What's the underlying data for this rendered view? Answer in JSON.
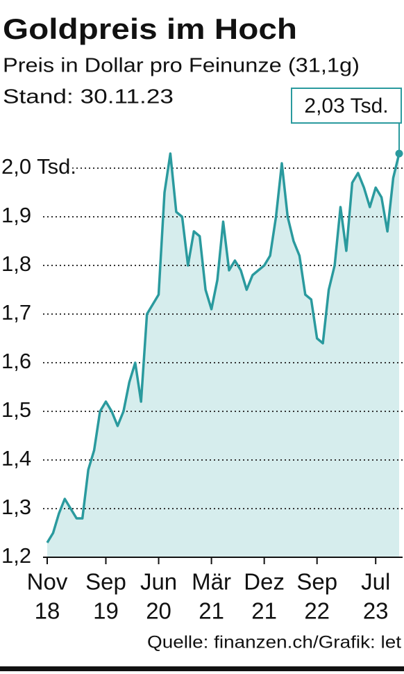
{
  "chart_data": {
    "type": "area",
    "title": "Goldpreis im Hoch",
    "subtitle": "Preis in Dollar pro Feinunze (31,1g)",
    "stand": "Stand: 30.11.23",
    "source": "Quelle: finanzen.ch/Grafik: let",
    "x": [
      "2018-11",
      "2018-12",
      "2019-01",
      "2019-02",
      "2019-03",
      "2019-04",
      "2019-05",
      "2019-06",
      "2019-07",
      "2019-08",
      "2019-09",
      "2019-10",
      "2019-11",
      "2019-12",
      "2020-01",
      "2020-02",
      "2020-03",
      "2020-04",
      "2020-05",
      "2020-06",
      "2020-07",
      "2020-08",
      "2020-09",
      "2020-10",
      "2020-11",
      "2020-12",
      "2021-01",
      "2021-02",
      "2021-03",
      "2021-04",
      "2021-05",
      "2021-06",
      "2021-07",
      "2021-08",
      "2021-09",
      "2021-10",
      "2021-11",
      "2021-12",
      "2022-01",
      "2022-02",
      "2022-03",
      "2022-04",
      "2022-05",
      "2022-06",
      "2022-07",
      "2022-08",
      "2022-09",
      "2022-10",
      "2022-11",
      "2022-12",
      "2023-01",
      "2023-02",
      "2023-03",
      "2023-04",
      "2023-05",
      "2023-06",
      "2023-07",
      "2023-08",
      "2023-09",
      "2023-10",
      "2023-11"
    ],
    "values": [
      1.23,
      1.25,
      1.29,
      1.32,
      1.3,
      1.28,
      1.28,
      1.38,
      1.42,
      1.5,
      1.52,
      1.5,
      1.47,
      1.5,
      1.56,
      1.6,
      1.52,
      1.7,
      1.72,
      1.74,
      1.95,
      2.03,
      1.91,
      1.9,
      1.8,
      1.87,
      1.86,
      1.75,
      1.71,
      1.77,
      1.89,
      1.79,
      1.81,
      1.79,
      1.75,
      1.78,
      1.79,
      1.8,
      1.82,
      1.9,
      2.01,
      1.9,
      1.85,
      1.82,
      1.74,
      1.73,
      1.65,
      1.64,
      1.75,
      1.8,
      1.92,
      1.83,
      1.97,
      1.99,
      1.96,
      1.92,
      1.96,
      1.94,
      1.87,
      1.98,
      2.03
    ],
    "value_labels": [
      null,
      null,
      null,
      null,
      null,
      null,
      null,
      null,
      null,
      null,
      null,
      null,
      null,
      null,
      null,
      null,
      null,
      null,
      null,
      null,
      null,
      null,
      null,
      null,
      null,
      null,
      null,
      null,
      null,
      null,
      null,
      null,
      null,
      null,
      null,
      null,
      null,
      null,
      null,
      null,
      null,
      null,
      null,
      null,
      null,
      null,
      null,
      null,
      null,
      null,
      null,
      null,
      null,
      null,
      null,
      null,
      null,
      null,
      null,
      null,
      "2,03 Tsd."
    ],
    "color": "#2a9a9e",
    "fill_color": "#d6eded",
    "xlim": [
      "2018-11",
      "2023-11"
    ],
    "xticks": [
      {
        "value": "2018-11",
        "label": [
          "Nov",
          "18"
        ]
      },
      {
        "value": "2019-09",
        "label": [
          "Sep",
          "19"
        ]
      },
      {
        "value": "2020-06",
        "label": [
          "Jun",
          "20"
        ]
      },
      {
        "value": "2021-03",
        "label": [
          "Mär",
          "21"
        ]
      },
      {
        "value": "2021-12",
        "label": [
          "Dez",
          "21"
        ]
      },
      {
        "value": "2022-09",
        "label": [
          "Sep",
          "22"
        ]
      },
      {
        "value": "2023-07",
        "label": [
          "Jul",
          "23"
        ]
      }
    ],
    "ylim": [
      1.2,
      2.1
    ],
    "yticks": [
      {
        "value": 1.2,
        "label": "1,2"
      },
      {
        "value": 1.3,
        "label": "1,3"
      },
      {
        "value": 1.4,
        "label": "1,4"
      },
      {
        "value": 1.5,
        "label": "1,5"
      },
      {
        "value": 1.6,
        "label": "1,6"
      },
      {
        "value": 1.7,
        "label": "1,7"
      },
      {
        "value": 1.8,
        "label": "1,8"
      },
      {
        "value": 1.9,
        "label": "1,9"
      },
      {
        "value": 2.0,
        "label": "2,0 Tsd."
      }
    ],
    "grid": true
  }
}
